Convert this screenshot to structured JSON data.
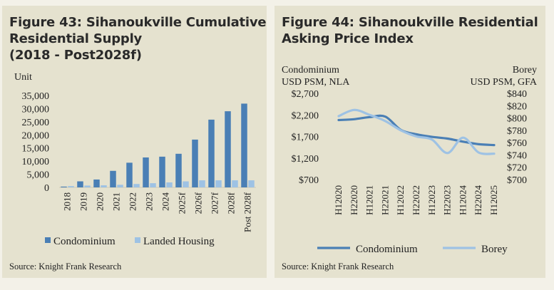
{
  "figure43": {
    "title_line1": "Figure 43: Sihanoukville Cumulative",
    "title_line2": "Residential Supply",
    "title_line3": "(2018 - Post2028f)",
    "source": "Source:  Knight Frank Research"
  },
  "figure44": {
    "title_line1": "Figure 44: Sihanoukville Residential",
    "title_line2": "Asking Price Index",
    "source": "Source:  Knight Frank Research"
  },
  "chart_data": [
    {
      "type": "bar",
      "title": "Figure 43: Sihanoukville Cumulative Residential Supply (2018 - Post2028f)",
      "ylabel": "Unit",
      "ylim": [
        0,
        35000
      ],
      "yticks": [
        "0",
        "5,000",
        "10,000",
        "15,000",
        "20,000",
        "25,000",
        "30,000",
        "35,000"
      ],
      "categories": [
        "2018",
        "2019",
        "2020",
        "2021",
        "2022",
        "2023",
        "2024",
        "2025f",
        "2026f",
        "2027f",
        "2028f",
        "Post 2028f"
      ],
      "series": [
        {
          "name": "Condominium",
          "color": "#4a7fb5",
          "values": [
            300,
            2300,
            3000,
            6300,
            9400,
            11400,
            11700,
            12800,
            18200,
            25800,
            29000,
            31900
          ]
        },
        {
          "name": "Landed Housing",
          "color": "#9ec2e4",
          "values": [
            500,
            700,
            800,
            1000,
            1300,
            1600,
            1900,
            2300,
            2700,
            2700,
            2700,
            2700
          ]
        }
      ]
    },
    {
      "type": "line",
      "title": "Figure 44: Sihanoukville Residential Asking Price Index",
      "left_axis_label_line1": "Condominium",
      "left_axis_label_line2": "USD PSM, NLA",
      "right_axis_label_line1": "Borey",
      "right_axis_label_line2": "USD PSM, GFA",
      "x": [
        "H12020",
        "H22020",
        "H12021",
        "H22021",
        "H12022",
        "H22022",
        "H12023",
        "H22023",
        "H12024",
        "H22024",
        "H12025"
      ],
      "y_left_range": [
        700,
        2700
      ],
      "y_left_ticks": [
        "$700",
        "$1,200",
        "$1,700",
        "$2,200",
        "$2,700"
      ],
      "y_right_range": [
        700,
        840
      ],
      "y_right_ticks": [
        "$700",
        "$720",
        "$740",
        "$760",
        "$780",
        "$800",
        "$820",
        "$840"
      ],
      "series": [
        {
          "name": "Condominium",
          "axis": "left",
          "color": "#4a7fb5",
          "values": [
            2080,
            2100,
            2150,
            2160,
            1850,
            1750,
            1690,
            1650,
            1580,
            1520,
            1500
          ]
        },
        {
          "name": "Borey",
          "axis": "right",
          "color": "#9ec2e4",
          "values": [
            803,
            813,
            805,
            795,
            780,
            770,
            765,
            743,
            768,
            744,
            742
          ]
        }
      ]
    }
  ]
}
